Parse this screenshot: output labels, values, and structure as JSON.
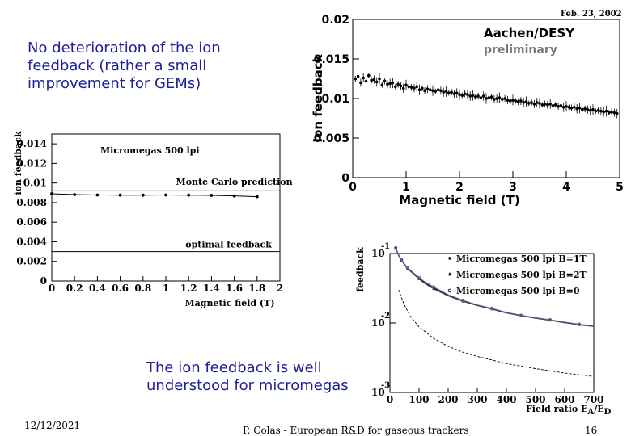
{
  "slide": {
    "top_note": "No deterioration of the ion\nfeedback (rather a small\nimprovement for GEMs)",
    "bottom_note": "The ion feedback is well\nunderstood for micromegas",
    "footer_date": "12/12/2021",
    "footer_center": "P. Colas - European R&D for gaseous trackers",
    "page_number": "16",
    "text_color": "#1f1f99"
  },
  "chart_data": [
    {
      "type": "line",
      "title": "Micromegas 500 lpi",
      "xlabel": "Magnetic field (T)",
      "ylabel": "ion feedback",
      "xlim": [
        0,
        2
      ],
      "ylim": [
        0,
        0.015
      ],
      "x_ticks": [
        "0",
        "0.2",
        "0.4",
        "0.6",
        "0.8",
        "1",
        "1.2",
        "1.4",
        "1.6",
        "1.8",
        "2"
      ],
      "y_ticks": [
        "0",
        "0.002",
        "0.004",
        "0.006",
        "0.008",
        "0.01",
        "0.012",
        "0.014"
      ],
      "x_tick_values": [
        0,
        0.2,
        0.4,
        0.6,
        0.8,
        1,
        1.2,
        1.4,
        1.6,
        1.8,
        2
      ],
      "y_tick_values": [
        0,
        0.002,
        0.004,
        0.006,
        0.008,
        0.01,
        0.012,
        0.014
      ],
      "annotations": [
        {
          "text": "Monte Carlo prediction",
          "x": 1.6,
          "y": 0.0098
        },
        {
          "text": "optimal feedback",
          "x": 1.55,
          "y": 0.0034
        }
      ],
      "series": [
        {
          "x": [
            0,
            0.2,
            0.4,
            0.6,
            0.8,
            1.0,
            1.2,
            1.4,
            1.6,
            1.8
          ],
          "values": [
            0.0089,
            0.00882,
            0.00878,
            0.00876,
            0.00876,
            0.00878,
            0.00876,
            0.00874,
            0.00868,
            0.0086
          ],
          "color": "#000000"
        }
      ],
      "reference_lines": [
        {
          "y": 0.0092,
          "color": "#000000"
        },
        {
          "y": 0.003,
          "color": "#000000"
        }
      ]
    },
    {
      "type": "scatter",
      "title": "Aachen/DESY",
      "subtitle": "preliminary",
      "header_note": "Feb. 23, 2002",
      "xlabel": "Magnetic field (T)",
      "ylabel": "Ion feedback",
      "xlim": [
        0,
        5
      ],
      "ylim": [
        0,
        0.02
      ],
      "x_ticks": [
        "0",
        "1",
        "2",
        "3",
        "4",
        "5"
      ],
      "y_ticks": [
        "0",
        "0.005",
        "0.01",
        "0.015",
        "0.02"
      ],
      "x_tick_values": [
        0,
        1,
        2,
        3,
        4,
        5
      ],
      "y_tick_values": [
        0,
        0.005,
        0.01,
        0.015,
        0.02
      ],
      "series": [
        {
          "x": [
            0.05,
            0.1,
            0.15,
            0.2,
            0.25,
            0.3,
            0.35,
            0.4,
            0.45,
            0.5,
            0.55,
            0.6,
            0.65,
            0.7,
            0.75,
            0.8,
            0.85,
            0.9,
            0.95,
            1.0,
            1.05,
            1.1,
            1.15,
            1.2,
            1.25,
            1.3,
            1.35,
            1.4,
            1.45,
            1.5,
            1.55,
            1.6,
            1.65,
            1.7,
            1.75,
            1.8,
            1.85,
            1.9,
            1.95,
            2.0,
            2.05,
            2.1,
            2.15,
            2.2,
            2.25,
            2.3,
            2.35,
            2.4,
            2.45,
            2.5,
            2.55,
            2.6,
            2.65,
            2.7,
            2.75,
            2.8,
            2.85,
            2.9,
            2.95,
            3.0,
            3.05,
            3.1,
            3.15,
            3.2,
            3.25,
            3.3,
            3.35,
            3.4,
            3.45,
            3.5,
            3.55,
            3.6,
            3.65,
            3.7,
            3.75,
            3.8,
            3.85,
            3.9,
            3.95,
            4.0,
            4.05,
            4.1,
            4.15,
            4.2,
            4.25,
            4.3,
            4.35,
            4.4,
            4.45,
            4.5,
            4.55,
            4.6,
            4.65,
            4.7,
            4.75,
            4.8,
            4.85,
            4.9,
            4.95
          ],
          "values": [
            0.0125,
            0.0128,
            0.012,
            0.0126,
            0.0122,
            0.0129,
            0.0123,
            0.0124,
            0.0121,
            0.0125,
            0.0117,
            0.0122,
            0.0118,
            0.0119,
            0.012,
            0.0115,
            0.0118,
            0.0116,
            0.0113,
            0.0117,
            0.0115,
            0.0114,
            0.0113,
            0.0115,
            0.0111,
            0.0113,
            0.011,
            0.0112,
            0.0111,
            0.011,
            0.0109,
            0.0111,
            0.011,
            0.0108,
            0.0109,
            0.0107,
            0.0108,
            0.0106,
            0.0107,
            0.0105,
            0.0104,
            0.0106,
            0.0105,
            0.0103,
            0.0104,
            0.0102,
            0.0103,
            0.0101,
            0.0103,
            0.01,
            0.0101,
            0.0102,
            0.0099,
            0.01,
            0.0101,
            0.0099,
            0.01,
            0.0098,
            0.0097,
            0.0098,
            0.0097,
            0.0096,
            0.0097,
            0.0095,
            0.0096,
            0.0094,
            0.0095,
            0.0093,
            0.0095,
            0.0094,
            0.0092,
            0.0093,
            0.0092,
            0.0093,
            0.0091,
            0.0092,
            0.009,
            0.0091,
            0.0089,
            0.009,
            0.0089,
            0.0088,
            0.0089,
            0.0087,
            0.0088,
            0.0086,
            0.0087,
            0.0086,
            0.0085,
            0.0086,
            0.0084,
            0.0085,
            0.0084,
            0.0083,
            0.0084,
            0.0082,
            0.0083,
            0.0082,
            0.0081
          ],
          "color": "#000000"
        }
      ]
    },
    {
      "type": "line",
      "xlabel": "Field ratio E_A/E_D",
      "xlabel_main": "Field ratio E",
      "xlabel_sub_1": "A",
      "xlabel_mid": "/E",
      "xlabel_sub_2": "D",
      "ylabel": "feedback",
      "xlim": [
        0,
        700
      ],
      "ylim": [
        0.001,
        0.1
      ],
      "log_scale_y": true,
      "x_ticks": [
        "0",
        "100",
        "200",
        "300",
        "400",
        "500",
        "600",
        "700"
      ],
      "x_tick_values": [
        0,
        100,
        200,
        300,
        400,
        500,
        600,
        700
      ],
      "y_ticks": [
        {
          "base": "10",
          "exp": "-1"
        },
        {
          "base": "10",
          "exp": "-2"
        },
        {
          "base": "10",
          "exp": "-3"
        }
      ],
      "y_tick_values": [
        0.1,
        0.01,
        0.001
      ],
      "legend": [
        {
          "text": "Micromegas 500 lpi B=1T",
          "marker": "dot"
        },
        {
          "text": "Micromegas 500 lpi B=2T",
          "marker": "triangle"
        },
        {
          "text": "Micromegas 500 lpi B=0",
          "marker": "circle"
        }
      ],
      "series": [
        {
          "name": "Micromegas 500 lpi B=1T",
          "x": [
            20,
            30,
            40,
            50,
            60,
            80,
            100,
            120,
            150,
            200,
            250,
            300,
            350,
            400,
            450,
            500,
            550,
            600,
            650,
            700
          ],
          "values": [
            0.12,
            0.095,
            0.08,
            0.07,
            0.062,
            0.052,
            0.044,
            0.038,
            0.032,
            0.025,
            0.021,
            0.018,
            0.016,
            0.014,
            0.0128,
            0.0118,
            0.011,
            0.0102,
            0.0095,
            0.009
          ],
          "color": "#222222"
        },
        {
          "name": "Micromegas 500 lpi B=2T",
          "x": [
            20,
            30,
            40,
            50,
            60,
            80,
            100,
            120,
            150,
            200,
            250,
            300,
            350,
            400,
            450,
            500,
            550,
            600,
            650,
            700
          ],
          "values": [
            0.118,
            0.093,
            0.079,
            0.069,
            0.061,
            0.051,
            0.043,
            0.037,
            0.031,
            0.0245,
            0.0205,
            0.0178,
            0.0158,
            0.0139,
            0.0127,
            0.0117,
            0.0109,
            0.0101,
            0.0094,
            0.0089
          ],
          "color": "#3a3a3a"
        },
        {
          "name": "Micromegas 500 lpi B=0",
          "x": [
            20,
            30,
            40,
            50,
            60,
            80,
            100,
            120,
            150,
            200,
            250,
            300,
            350,
            400,
            450,
            500,
            550,
            600,
            650,
            700
          ],
          "values": [
            0.121,
            0.096,
            0.081,
            0.071,
            0.063,
            0.053,
            0.045,
            0.039,
            0.033,
            0.0255,
            0.0212,
            0.0182,
            0.0162,
            0.0142,
            0.0129,
            0.0119,
            0.0111,
            0.0103,
            0.0096,
            0.0091
          ],
          "color": "#6b5a9a"
        },
        {
          "x": [
            30,
            40,
            50,
            70,
            100,
            150,
            200,
            250,
            300,
            400,
            500,
            600,
            700
          ],
          "values": [
            0.03,
            0.023,
            0.018,
            0.0125,
            0.0088,
            0.006,
            0.0046,
            0.0038,
            0.0033,
            0.0026,
            0.0022,
            0.0019,
            0.0017
          ],
          "color": "#000000"
        }
      ]
    }
  ]
}
